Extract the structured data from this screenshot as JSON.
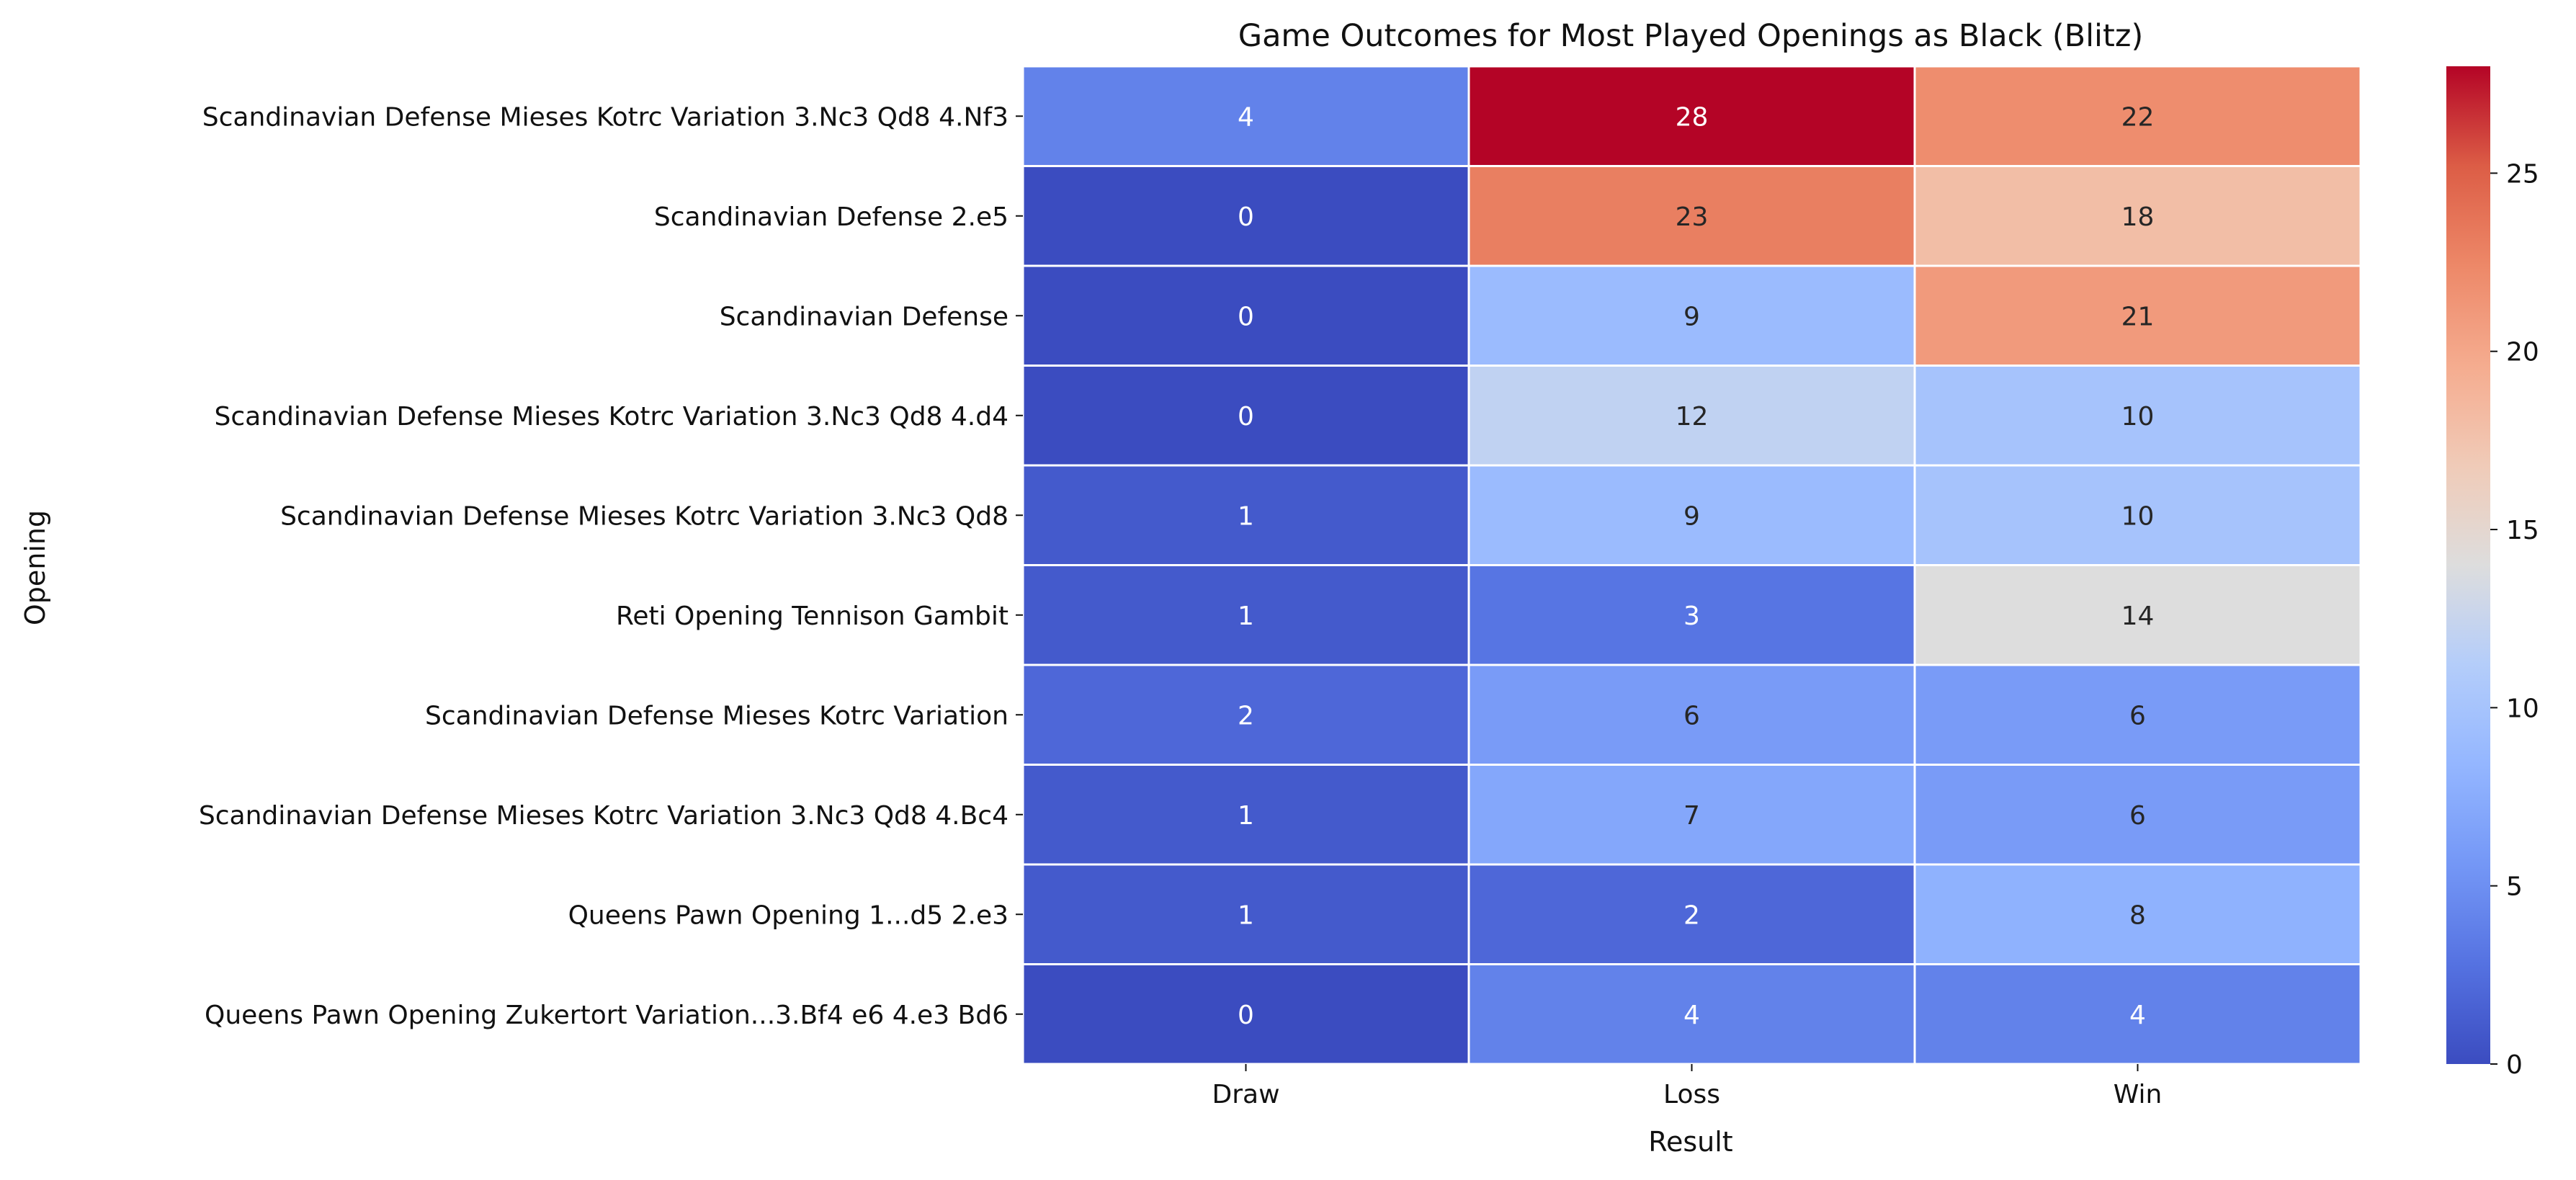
{
  "chart_data": {
    "type": "heatmap",
    "title": "Game Outcomes for Most Played Openings as Black (Blitz)",
    "xlabel": "Result",
    "ylabel": "Opening",
    "columns": [
      "Draw",
      "Loss",
      "Win"
    ],
    "rows": [
      "Scandinavian Defense Mieses Kotrc Variation 3.Nc3 Qd8 4.Nf3",
      "Scandinavian Defense 2.e5",
      "Scandinavian Defense",
      "Scandinavian Defense Mieses Kotrc Variation 3.Nc3 Qd8 4.d4",
      "Scandinavian Defense Mieses Kotrc Variation 3.Nc3 Qd8",
      "Reti Opening Tennison Gambit",
      "Scandinavian Defense Mieses Kotrc Variation",
      "Scandinavian Defense Mieses Kotrc Variation 3.Nc3 Qd8 4.Bc4",
      "Queens Pawn Opening 1...d5 2.e3",
      "Queens Pawn Opening Zukertort Variation...3.Bf4 e6 4.e3 Bd6"
    ],
    "values": [
      [
        4,
        28,
        22
      ],
      [
        0,
        23,
        18
      ],
      [
        0,
        9,
        21
      ],
      [
        0,
        12,
        10
      ],
      [
        1,
        9,
        10
      ],
      [
        1,
        3,
        14
      ],
      [
        2,
        6,
        6
      ],
      [
        1,
        7,
        6
      ],
      [
        1,
        2,
        8
      ],
      [
        0,
        4,
        4
      ]
    ],
    "colorbar": {
      "min": 0,
      "max": 28,
      "ticks": [
        0,
        5,
        10,
        15,
        20,
        25
      ],
      "colormap": "coolwarm"
    }
  }
}
